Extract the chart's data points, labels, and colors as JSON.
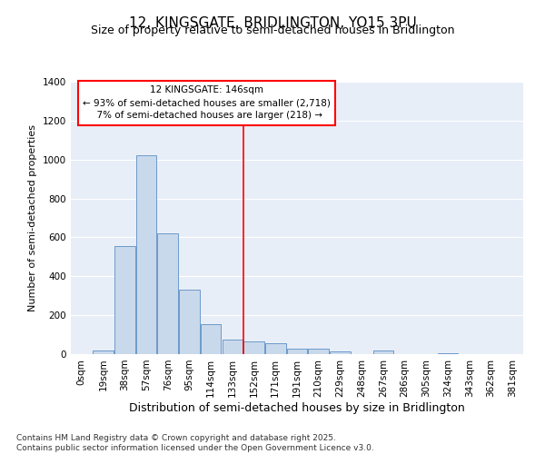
{
  "title": "12, KINGSGATE, BRIDLINGTON, YO15 3PU",
  "subtitle": "Size of property relative to semi-detached houses in Bridlington",
  "xlabel": "Distribution of semi-detached houses by size in Bridlington",
  "ylabel": "Number of semi-detached properties",
  "bar_color": "#c9d9ec",
  "bar_edge_color": "#5b8ec4",
  "background_color": "#e8eef8",
  "grid_color": "#ffffff",
  "bin_labels": [
    "0sqm",
    "19sqm",
    "38sqm",
    "57sqm",
    "76sqm",
    "95sqm",
    "114sqm",
    "133sqm",
    "152sqm",
    "171sqm",
    "191sqm",
    "210sqm",
    "229sqm",
    "248sqm",
    "267sqm",
    "286sqm",
    "305sqm",
    "324sqm",
    "343sqm",
    "362sqm",
    "381sqm"
  ],
  "bar_heights": [
    0,
    20,
    555,
    1020,
    620,
    330,
    155,
    75,
    65,
    55,
    30,
    30,
    15,
    0,
    20,
    0,
    0,
    5,
    0,
    0,
    0
  ],
  "property_label": "12 KINGSGATE: 146sqm",
  "pct_smaller": 93,
  "n_smaller": 2718,
  "pct_larger": 7,
  "n_larger": 218,
  "vline_pos": 7.5,
  "ylim": [
    0,
    1400
  ],
  "yticks": [
    0,
    200,
    400,
    600,
    800,
    1000,
    1200,
    1400
  ],
  "footer": "Contains HM Land Registry data © Crown copyright and database right 2025.\nContains public sector information licensed under the Open Government Licence v3.0.",
  "title_fontsize": 11,
  "subtitle_fontsize": 9,
  "xlabel_fontsize": 9,
  "ylabel_fontsize": 8,
  "tick_fontsize": 7.5,
  "footer_fontsize": 6.5,
  "annot_fontsize": 7.5
}
